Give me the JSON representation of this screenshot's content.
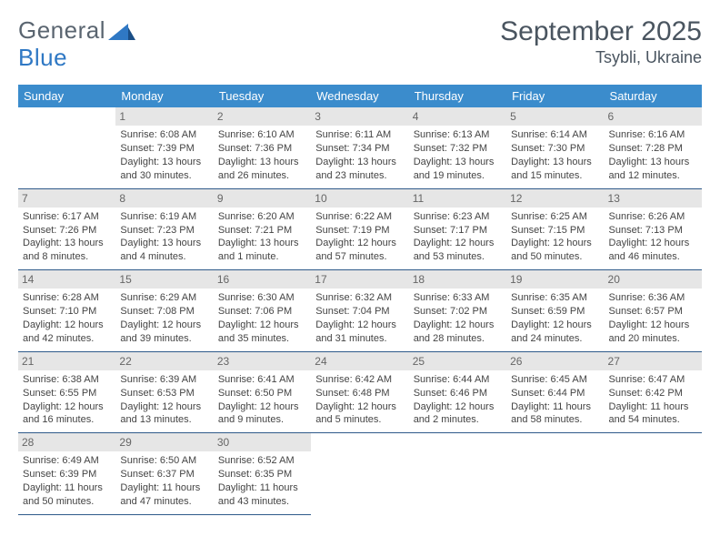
{
  "brand": {
    "part1": "General",
    "part2": "Blue"
  },
  "title": "September 2025",
  "location": "Tsybli, Ukraine",
  "header_color": "#3b8ccc",
  "divider_color": "#2f5a8a",
  "daynum_bg": "#e6e6e6",
  "text_color": "#444444",
  "day_headers": [
    "Sunday",
    "Monday",
    "Tuesday",
    "Wednesday",
    "Thursday",
    "Friday",
    "Saturday"
  ],
  "weeks": [
    [
      null,
      {
        "n": "1",
        "sr": "Sunrise: 6:08 AM",
        "ss": "Sunset: 7:39 PM",
        "dl": "Daylight: 13 hours and 30 minutes."
      },
      {
        "n": "2",
        "sr": "Sunrise: 6:10 AM",
        "ss": "Sunset: 7:36 PM",
        "dl": "Daylight: 13 hours and 26 minutes."
      },
      {
        "n": "3",
        "sr": "Sunrise: 6:11 AM",
        "ss": "Sunset: 7:34 PM",
        "dl": "Daylight: 13 hours and 23 minutes."
      },
      {
        "n": "4",
        "sr": "Sunrise: 6:13 AM",
        "ss": "Sunset: 7:32 PM",
        "dl": "Daylight: 13 hours and 19 minutes."
      },
      {
        "n": "5",
        "sr": "Sunrise: 6:14 AM",
        "ss": "Sunset: 7:30 PM",
        "dl": "Daylight: 13 hours and 15 minutes."
      },
      {
        "n": "6",
        "sr": "Sunrise: 6:16 AM",
        "ss": "Sunset: 7:28 PM",
        "dl": "Daylight: 13 hours and 12 minutes."
      }
    ],
    [
      {
        "n": "7",
        "sr": "Sunrise: 6:17 AM",
        "ss": "Sunset: 7:26 PM",
        "dl": "Daylight: 13 hours and 8 minutes."
      },
      {
        "n": "8",
        "sr": "Sunrise: 6:19 AM",
        "ss": "Sunset: 7:23 PM",
        "dl": "Daylight: 13 hours and 4 minutes."
      },
      {
        "n": "9",
        "sr": "Sunrise: 6:20 AM",
        "ss": "Sunset: 7:21 PM",
        "dl": "Daylight: 13 hours and 1 minute."
      },
      {
        "n": "10",
        "sr": "Sunrise: 6:22 AM",
        "ss": "Sunset: 7:19 PM",
        "dl": "Daylight: 12 hours and 57 minutes."
      },
      {
        "n": "11",
        "sr": "Sunrise: 6:23 AM",
        "ss": "Sunset: 7:17 PM",
        "dl": "Daylight: 12 hours and 53 minutes."
      },
      {
        "n": "12",
        "sr": "Sunrise: 6:25 AM",
        "ss": "Sunset: 7:15 PM",
        "dl": "Daylight: 12 hours and 50 minutes."
      },
      {
        "n": "13",
        "sr": "Sunrise: 6:26 AM",
        "ss": "Sunset: 7:13 PM",
        "dl": "Daylight: 12 hours and 46 minutes."
      }
    ],
    [
      {
        "n": "14",
        "sr": "Sunrise: 6:28 AM",
        "ss": "Sunset: 7:10 PM",
        "dl": "Daylight: 12 hours and 42 minutes."
      },
      {
        "n": "15",
        "sr": "Sunrise: 6:29 AM",
        "ss": "Sunset: 7:08 PM",
        "dl": "Daylight: 12 hours and 39 minutes."
      },
      {
        "n": "16",
        "sr": "Sunrise: 6:30 AM",
        "ss": "Sunset: 7:06 PM",
        "dl": "Daylight: 12 hours and 35 minutes."
      },
      {
        "n": "17",
        "sr": "Sunrise: 6:32 AM",
        "ss": "Sunset: 7:04 PM",
        "dl": "Daylight: 12 hours and 31 minutes."
      },
      {
        "n": "18",
        "sr": "Sunrise: 6:33 AM",
        "ss": "Sunset: 7:02 PM",
        "dl": "Daylight: 12 hours and 28 minutes."
      },
      {
        "n": "19",
        "sr": "Sunrise: 6:35 AM",
        "ss": "Sunset: 6:59 PM",
        "dl": "Daylight: 12 hours and 24 minutes."
      },
      {
        "n": "20",
        "sr": "Sunrise: 6:36 AM",
        "ss": "Sunset: 6:57 PM",
        "dl": "Daylight: 12 hours and 20 minutes."
      }
    ],
    [
      {
        "n": "21",
        "sr": "Sunrise: 6:38 AM",
        "ss": "Sunset: 6:55 PM",
        "dl": "Daylight: 12 hours and 16 minutes."
      },
      {
        "n": "22",
        "sr": "Sunrise: 6:39 AM",
        "ss": "Sunset: 6:53 PM",
        "dl": "Daylight: 12 hours and 13 minutes."
      },
      {
        "n": "23",
        "sr": "Sunrise: 6:41 AM",
        "ss": "Sunset: 6:50 PM",
        "dl": "Daylight: 12 hours and 9 minutes."
      },
      {
        "n": "24",
        "sr": "Sunrise: 6:42 AM",
        "ss": "Sunset: 6:48 PM",
        "dl": "Daylight: 12 hours and 5 minutes."
      },
      {
        "n": "25",
        "sr": "Sunrise: 6:44 AM",
        "ss": "Sunset: 6:46 PM",
        "dl": "Daylight: 12 hours and 2 minutes."
      },
      {
        "n": "26",
        "sr": "Sunrise: 6:45 AM",
        "ss": "Sunset: 6:44 PM",
        "dl": "Daylight: 11 hours and 58 minutes."
      },
      {
        "n": "27",
        "sr": "Sunrise: 6:47 AM",
        "ss": "Sunset: 6:42 PM",
        "dl": "Daylight: 11 hours and 54 minutes."
      }
    ],
    [
      {
        "n": "28",
        "sr": "Sunrise: 6:49 AM",
        "ss": "Sunset: 6:39 PM",
        "dl": "Daylight: 11 hours and 50 minutes."
      },
      {
        "n": "29",
        "sr": "Sunrise: 6:50 AM",
        "ss": "Sunset: 6:37 PM",
        "dl": "Daylight: 11 hours and 47 minutes."
      },
      {
        "n": "30",
        "sr": "Sunrise: 6:52 AM",
        "ss": "Sunset: 6:35 PM",
        "dl": "Daylight: 11 hours and 43 minutes."
      },
      null,
      null,
      null,
      null
    ]
  ]
}
